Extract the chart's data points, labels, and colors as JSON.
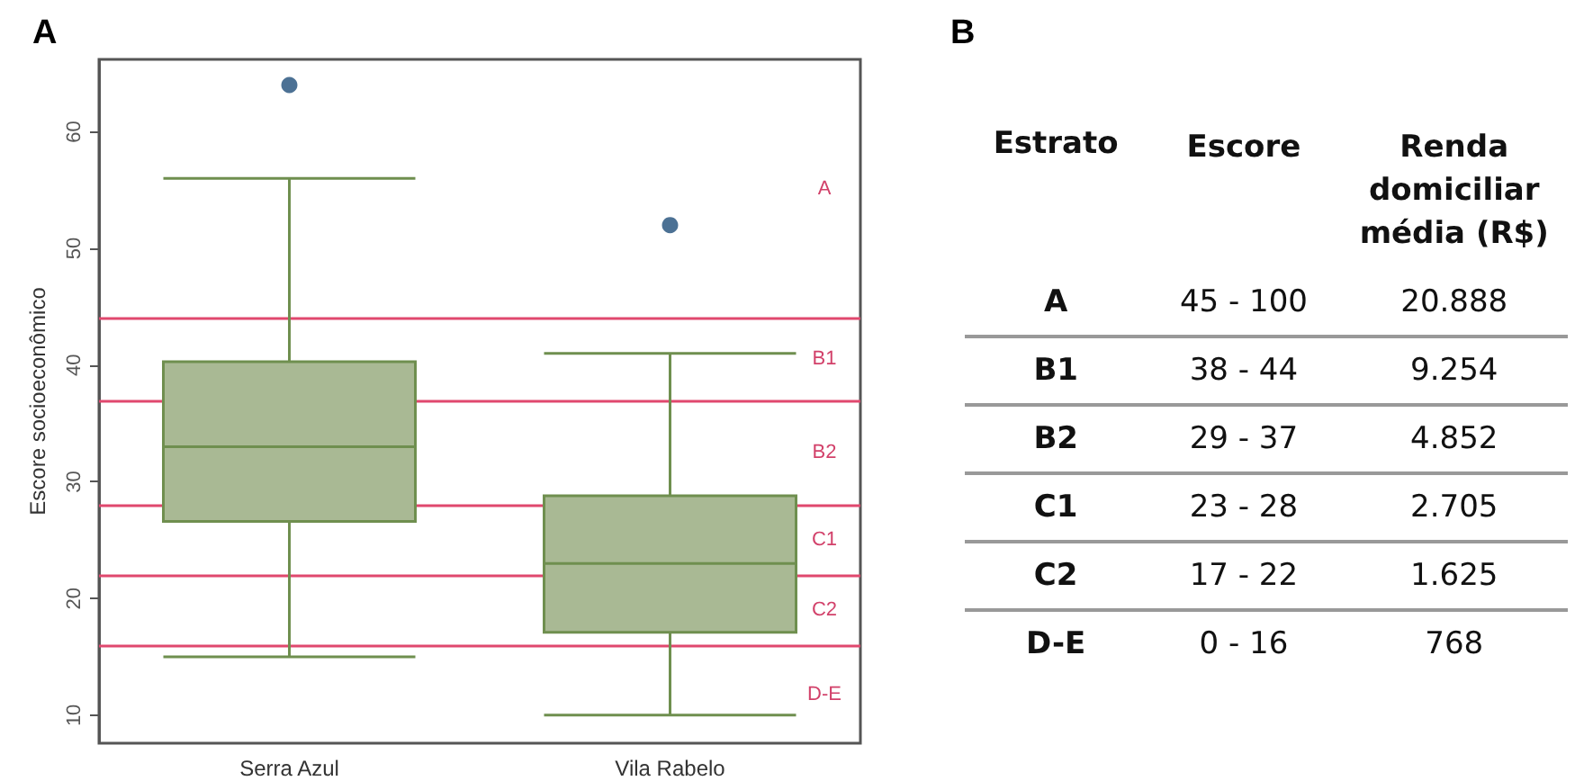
{
  "chart_data": [
    {
      "type": "box",
      "title": "A",
      "ylabel": "Escore socioeconômico",
      "categories": [
        "Serra Azul",
        "Vila Rabelo"
      ],
      "series": [
        {
          "type": "box",
          "color": "#a9b994",
          "boxes": [
            {
              "low": 15,
              "q1": 26.6,
              "median": 33,
              "q3": 40.3,
              "high": 56
            },
            {
              "low": 10,
              "q1": 17.1,
              "median": 23,
              "q3": 28.8,
              "high": 41
            }
          ]
        },
        {
          "type": "scatter",
          "color": "#1f4e79",
          "x": [
            "Serra Azul",
            "Vila Rabelo"
          ],
          "values": [
            64,
            52
          ]
        }
      ],
      "ylim": [
        7.6,
        66.2
      ],
      "yticks": [
        10,
        20,
        30,
        40,
        50,
        60
      ],
      "grid": false,
      "ref_lines": [
        {
          "axis": "y",
          "value": 44,
          "color": "#e0486e"
        },
        {
          "axis": "y",
          "value": 37,
          "color": "#e0486e"
        },
        {
          "axis": "y",
          "value": 28,
          "color": "#e0486e"
        },
        {
          "axis": "y",
          "value": 22,
          "color": "#e0486e"
        },
        {
          "axis": "y",
          "value": 16,
          "color": "#e0486e"
        }
      ],
      "annotations": [
        "A",
        "B1",
        "B2",
        "C1",
        "C2",
        "D-E"
      ]
    },
    {
      "type": "other",
      "title": "B",
      "ylabel": "Estrato",
      "categories": [
        "Escore",
        "Renda domiciliar média (R$)"
      ],
      "y_categories": [
        "A",
        "B1",
        "B2",
        "C1",
        "C2",
        "D-E"
      ],
      "cell_labels": [
        [
          "45 - 100",
          "20.888"
        ],
        [
          "38 - 44",
          "9.254"
        ],
        [
          "29 - 37",
          "4.852"
        ],
        [
          "23 - 28",
          "2.705"
        ],
        [
          "17 - 22",
          "1.625"
        ],
        [
          "0 - 16",
          "768"
        ]
      ]
    }
  ]
}
